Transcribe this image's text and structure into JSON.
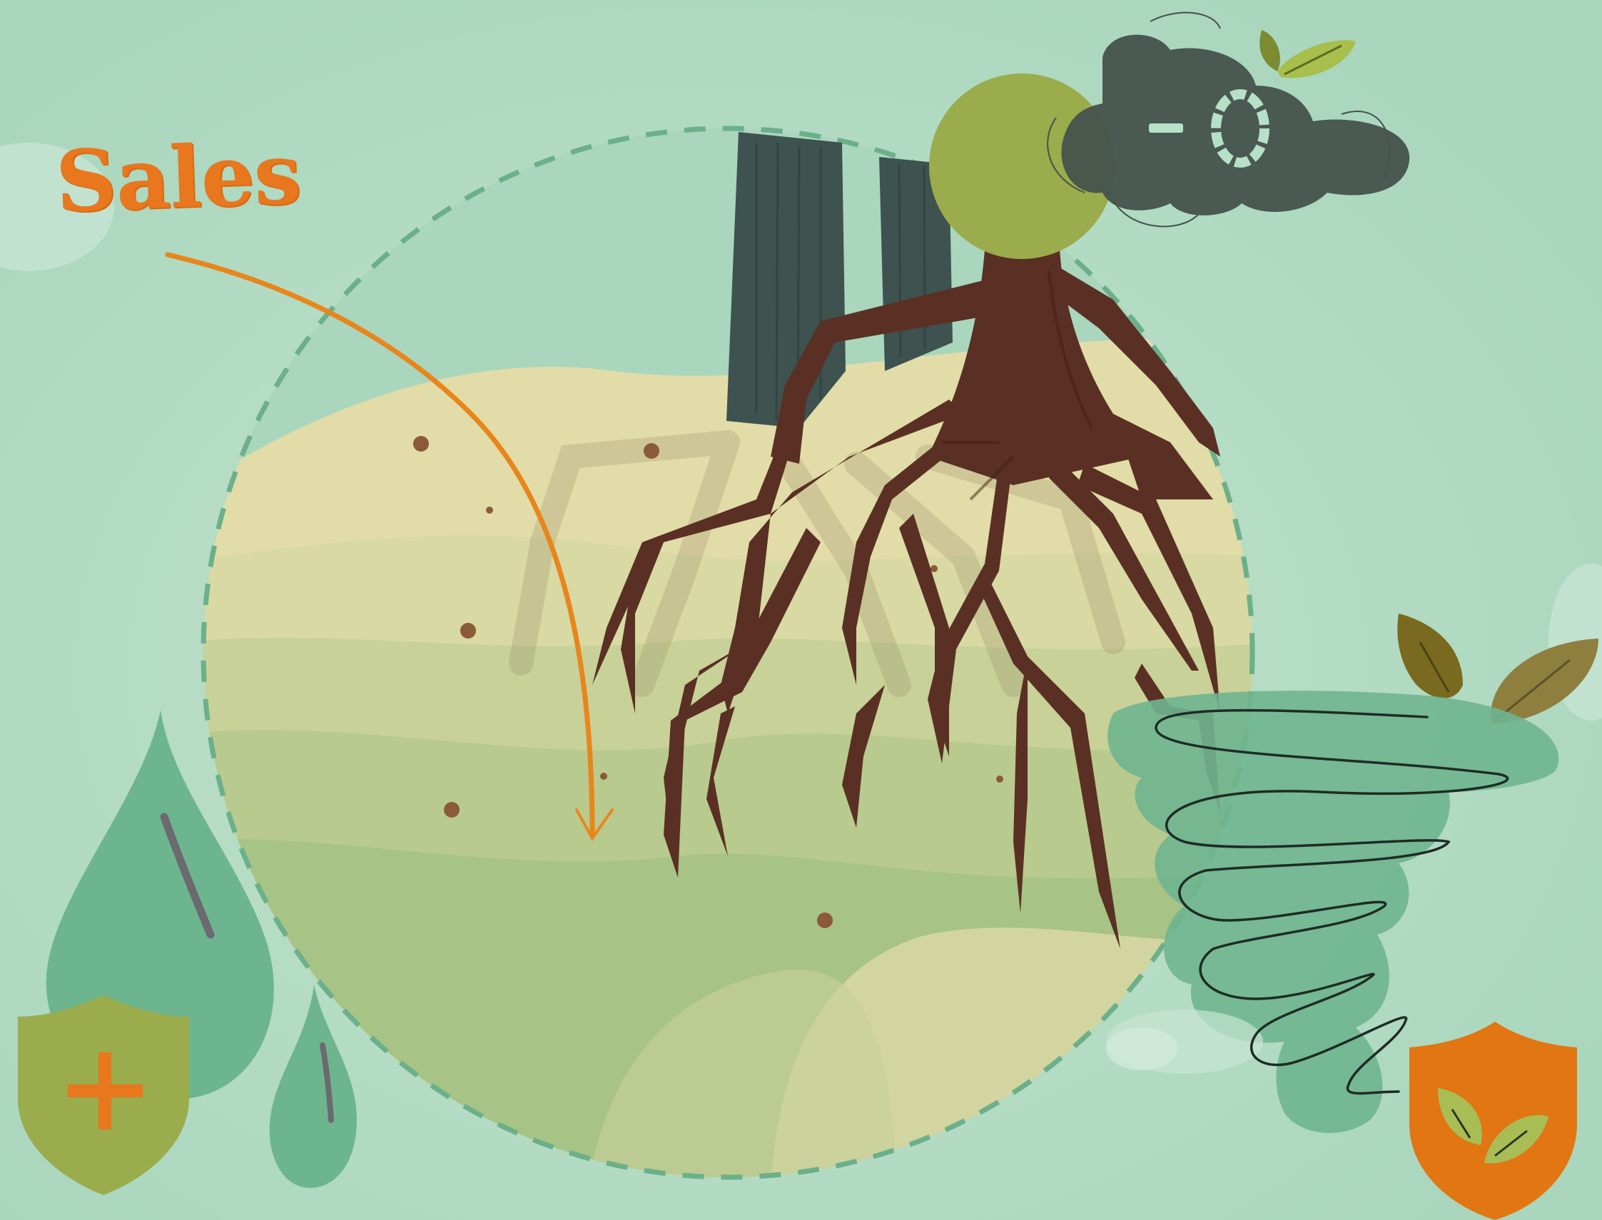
{
  "canvas": {
    "background": "#afd9c1"
  },
  "label": {
    "text": "Sales",
    "color": "#e8771d"
  },
  "colors": {
    "orange": "#e8771d",
    "olive": "#9aac4b",
    "root_brown": "#5a3024",
    "dark_slate": "#3e5250",
    "sand": "#e7dca8",
    "teal": "#6db58e",
    "dot_brown": "#8b5a3a"
  },
  "icons": [
    "cloud-icon",
    "leaf-icon",
    "plus-shield-icon",
    "leaf-shield-icon",
    "water-drop-icon",
    "arrow-icon"
  ]
}
